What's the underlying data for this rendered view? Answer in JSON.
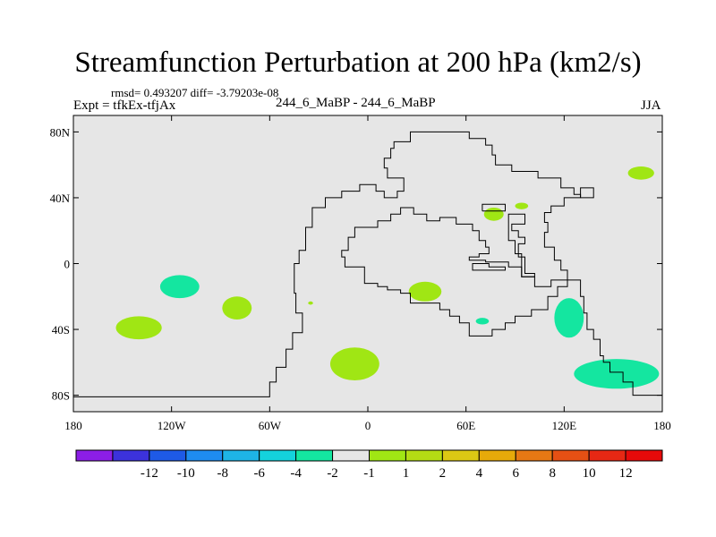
{
  "title": "Streamfunction Perturbation at 200 hPa (km2/s)",
  "stats": "rmsd= 0.493207 diff= -3.79203e-08",
  "expt": "Expt = tfkEx-tfjAx",
  "runs": "244_6_MaBP - 244_6_MaBP",
  "season": "JJA",
  "map": {
    "lon_range": [
      -180,
      180
    ],
    "lat_range": [
      -90,
      90
    ],
    "background": "#e6e6e6",
    "y_ticks": [
      {
        "lat": 80,
        "label": "80N"
      },
      {
        "lat": 40,
        "label": "40N"
      },
      {
        "lat": 0,
        "label": "0"
      },
      {
        "lat": -40,
        "label": "40S"
      },
      {
        "lat": -80,
        "label": "80S"
      }
    ],
    "x_ticks": [
      {
        "lon": -180,
        "label": "180"
      },
      {
        "lon": -120,
        "label": "120W"
      },
      {
        "lon": -60,
        "label": "60W"
      },
      {
        "lon": 0,
        "label": "0"
      },
      {
        "lon": 60,
        "label": "60E"
      },
      {
        "lon": 120,
        "label": "120E"
      },
      {
        "lon": 180,
        "label": "180"
      }
    ]
  },
  "colorbar": {
    "colors": [
      "#8c1ee6",
      "#3c32dc",
      "#1e5ae6",
      "#1e8cf0",
      "#1eb4e6",
      "#14d2dc",
      "#14e6a0",
      "#e6e6e6",
      "#a0e614",
      "#b4dc14",
      "#dcc814",
      "#e6aa0a",
      "#e67814",
      "#e65014",
      "#e62814",
      "#e60a0a"
    ],
    "labels": [
      "-12",
      "-10",
      "-8",
      "-6",
      "-4",
      "-2",
      "-1",
      "1",
      "2",
      "4",
      "6",
      "8",
      "10",
      "12"
    ]
  },
  "anomalies": [
    {
      "level": "-1",
      "lon": -115,
      "lat": -14,
      "rx": 12,
      "ry": 7,
      "color": "#14e6a0"
    },
    {
      "level": "1",
      "lon": -80,
      "lat": -27,
      "rx": 9,
      "ry": 7,
      "color": "#a0e614"
    },
    {
      "level": "1",
      "lon": -140,
      "lat": -39,
      "rx": 14,
      "ry": 7,
      "color": "#a0e614"
    },
    {
      "level": "1",
      "lon": -35,
      "lat": -24,
      "rx": 1.5,
      "ry": 1,
      "color": "#a0e614"
    },
    {
      "level": "1",
      "lon": -8,
      "lat": -61,
      "rx": 15,
      "ry": 10,
      "color": "#a0e614"
    },
    {
      "level": "1",
      "lon": 35,
      "lat": -17,
      "rx": 10,
      "ry": 6,
      "color": "#a0e614"
    },
    {
      "level": "-1",
      "lon": 70,
      "lat": -35,
      "rx": 4,
      "ry": 2,
      "color": "#14e6a0"
    },
    {
      "level": "1",
      "lon": 77,
      "lat": 30,
      "rx": 6,
      "ry": 4,
      "color": "#a0e614"
    },
    {
      "level": "1",
      "lon": 94,
      "lat": 35,
      "rx": 4,
      "ry": 2,
      "color": "#a0e614"
    },
    {
      "level": "1",
      "lon": 167,
      "lat": 55,
      "rx": 8,
      "ry": 4,
      "color": "#a0e614"
    },
    {
      "level": "-1",
      "lon": 123,
      "lat": -33,
      "rx": 9,
      "ry": 12,
      "color": "#14e6a0"
    },
    {
      "level": "-1",
      "lon": 152,
      "lat": -67,
      "rx": 26,
      "ry": 9,
      "color": "#14e6a0"
    }
  ],
  "outlines": [
    [
      [
        -180,
        -81
      ],
      [
        -60,
        -81
      ],
      [
        -60,
        -72
      ],
      [
        -56,
        -72
      ],
      [
        -56,
        -63
      ],
      [
        -50,
        -63
      ],
      [
        -50,
        -52
      ],
      [
        -46,
        -52
      ],
      [
        -46,
        -42
      ],
      [
        -40,
        -42
      ],
      [
        -40,
        -30
      ],
      [
        -44,
        -30
      ],
      [
        -44,
        -18
      ],
      [
        -45,
        -18
      ],
      [
        -45,
        0
      ],
      [
        -42,
        0
      ],
      [
        -42,
        8
      ],
      [
        -38,
        8
      ],
      [
        -38,
        22
      ],
      [
        -34,
        22
      ],
      [
        -34,
        34
      ],
      [
        -26,
        34
      ],
      [
        -26,
        40
      ],
      [
        -16,
        40
      ],
      [
        -16,
        44
      ],
      [
        -5,
        44
      ],
      [
        -5,
        48
      ],
      [
        5,
        48
      ],
      [
        5,
        44
      ],
      [
        10,
        44
      ],
      [
        10,
        40
      ],
      [
        18,
        40
      ],
      [
        18,
        44
      ],
      [
        22,
        44
      ],
      [
        22,
        52
      ],
      [
        12,
        52
      ],
      [
        12,
        58
      ],
      [
        10,
        58
      ],
      [
        10,
        64
      ],
      [
        14,
        64
      ],
      [
        14,
        70
      ],
      [
        16,
        70
      ],
      [
        16,
        74
      ],
      [
        26,
        74
      ],
      [
        26,
        80
      ],
      [
        62,
        80
      ],
      [
        62,
        76
      ],
      [
        72,
        76
      ],
      [
        72,
        72
      ],
      [
        76,
        72
      ],
      [
        76,
        66
      ],
      [
        78,
        66
      ],
      [
        78,
        60
      ],
      [
        88,
        60
      ],
      [
        88,
        56
      ],
      [
        104,
        56
      ],
      [
        104,
        52
      ],
      [
        118,
        52
      ],
      [
        118,
        46
      ],
      [
        126,
        46
      ],
      [
        126,
        42
      ],
      [
        130,
        42
      ],
      [
        130,
        40
      ],
      [
        120,
        40
      ],
      [
        120,
        35
      ],
      [
        112,
        35
      ],
      [
        112,
        31
      ],
      [
        108,
        31
      ],
      [
        108,
        25
      ],
      [
        110,
        25
      ],
      [
        110,
        19
      ],
      [
        108,
        19
      ],
      [
        108,
        10
      ],
      [
        114,
        10
      ],
      [
        114,
        2
      ],
      [
        118,
        2
      ],
      [
        118,
        -4
      ],
      [
        122,
        -4
      ],
      [
        122,
        -10
      ],
      [
        112,
        -10
      ],
      [
        112,
        -14
      ],
      [
        102,
        -14
      ],
      [
        102,
        -8
      ],
      [
        94,
        -8
      ],
      [
        94,
        -2
      ],
      [
        86,
        -2
      ],
      [
        86,
        1
      ],
      [
        72,
        1
      ],
      [
        72,
        2
      ],
      [
        62,
        2
      ],
      [
        62,
        4
      ],
      [
        68,
        4
      ],
      [
        68,
        6
      ],
      [
        74,
        6
      ],
      [
        74,
        10
      ],
      [
        72,
        10
      ],
      [
        72,
        14
      ],
      [
        68,
        14
      ],
      [
        68,
        20
      ],
      [
        64,
        20
      ],
      [
        64,
        24
      ],
      [
        54,
        24
      ],
      [
        54,
        28
      ],
      [
        44,
        28
      ],
      [
        44,
        26
      ],
      [
        36,
        26
      ],
      [
        36,
        30
      ],
      [
        28,
        30
      ],
      [
        28,
        34
      ],
      [
        20,
        34
      ],
      [
        20,
        30
      ],
      [
        14,
        30
      ],
      [
        14,
        26
      ],
      [
        6,
        26
      ],
      [
        6,
        22
      ],
      [
        -8,
        22
      ],
      [
        -8,
        16
      ],
      [
        -12,
        16
      ],
      [
        -12,
        8
      ],
      [
        -16,
        8
      ],
      [
        -16,
        4
      ],
      [
        -14,
        4
      ],
      [
        -14,
        -2
      ],
      [
        -2,
        -2
      ],
      [
        -2,
        -12
      ],
      [
        6,
        -12
      ],
      [
        6,
        -14
      ],
      [
        12,
        -14
      ],
      [
        12,
        -16
      ],
      [
        20,
        -16
      ],
      [
        20,
        -18
      ],
      [
        26,
        -18
      ],
      [
        26,
        -24
      ],
      [
        44,
        -24
      ],
      [
        44,
        -28
      ],
      [
        50,
        -28
      ],
      [
        50,
        -32
      ],
      [
        56,
        -32
      ],
      [
        56,
        -36
      ],
      [
        62,
        -36
      ],
      [
        62,
        -44
      ],
      [
        76,
        -44
      ],
      [
        76,
        -40
      ],
      [
        84,
        -40
      ],
      [
        84,
        -36
      ],
      [
        90,
        -36
      ],
      [
        90,
        -32
      ],
      [
        100,
        -32
      ],
      [
        100,
        -28
      ],
      [
        110,
        -28
      ],
      [
        110,
        -20
      ],
      [
        116,
        -20
      ],
      [
        116,
        -14
      ],
      [
        122,
        -14
      ],
      [
        122,
        -10
      ],
      [
        130,
        -10
      ],
      [
        130,
        -20
      ],
      [
        132,
        -20
      ],
      [
        132,
        -30
      ],
      [
        134,
        -30
      ],
      [
        134,
        -40
      ],
      [
        138,
        -40
      ],
      [
        138,
        -46
      ],
      [
        142,
        -46
      ],
      [
        142,
        -56
      ],
      [
        144,
        -56
      ],
      [
        144,
        -60
      ],
      [
        148,
        -60
      ],
      [
        148,
        -66
      ],
      [
        156,
        -66
      ],
      [
        156,
        -72
      ],
      [
        162,
        -72
      ],
      [
        162,
        -80
      ],
      [
        180,
        -80
      ]
    ],
    [
      [
        64,
        -2
      ],
      [
        64,
        0
      ],
      [
        74,
        0
      ],
      [
        74,
        -2
      ],
      [
        84,
        -2
      ],
      [
        84,
        -4
      ],
      [
        64,
        -4
      ],
      [
        64,
        -2
      ]
    ],
    [
      [
        70,
        32
      ],
      [
        70,
        36
      ],
      [
        84,
        36
      ],
      [
        84,
        32
      ],
      [
        70,
        32
      ]
    ],
    [
      [
        86,
        26
      ],
      [
        86,
        30
      ],
      [
        96,
        30
      ],
      [
        96,
        24
      ],
      [
        88,
        24
      ],
      [
        88,
        20
      ],
      [
        92,
        20
      ],
      [
        92,
        16
      ],
      [
        96,
        16
      ],
      [
        96,
        12
      ],
      [
        92,
        12
      ],
      [
        92,
        4
      ],
      [
        96,
        4
      ],
      [
        96,
        -6
      ],
      [
        102,
        -6
      ],
      [
        102,
        -8
      ],
      [
        94,
        -8
      ],
      [
        94,
        6
      ],
      [
        90,
        6
      ],
      [
        90,
        14
      ],
      [
        86,
        14
      ],
      [
        86,
        26
      ]
    ],
    [
      [
        130,
        40
      ],
      [
        138,
        40
      ],
      [
        138,
        46
      ],
      [
        130,
        46
      ],
      [
        130,
        40
      ]
    ]
  ]
}
